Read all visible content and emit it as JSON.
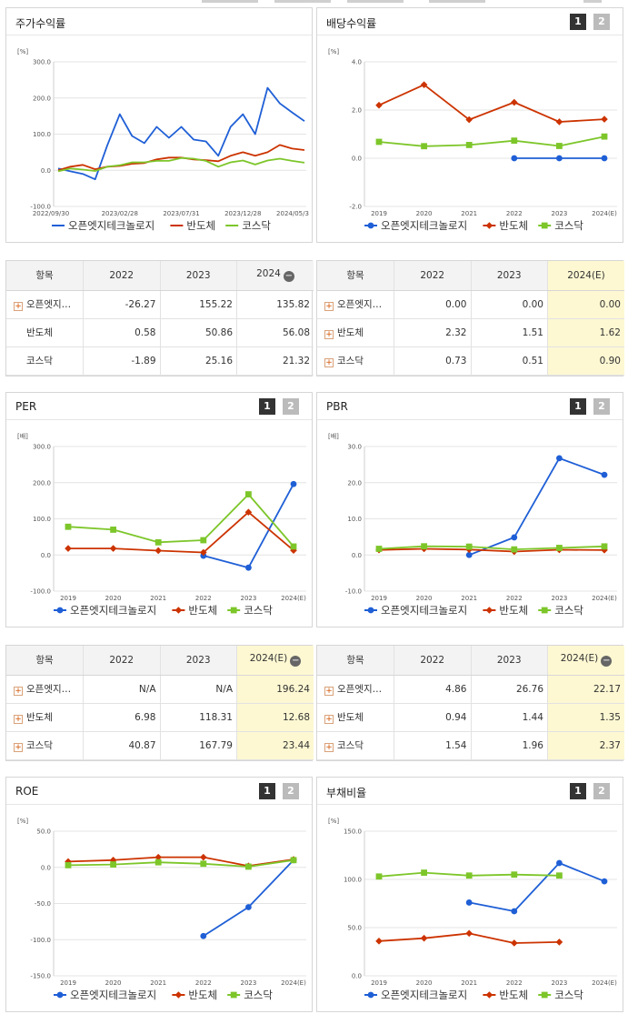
{
  "colors": {
    "blue": "#1f5fd6",
    "red": "#cc3300",
    "green": "#7dc62a",
    "grid": "#e4e4e4"
  },
  "panels": {
    "stock": {
      "title": "주가수익률",
      "unit": "[%]",
      "has_pager": false,
      "chart_data": {
        "type": "line",
        "ylim": [
          -100,
          300
        ],
        "yticks": [
          "300.0",
          "200.0",
          "100.0",
          "0.0",
          "-100.0"
        ],
        "x_labels": [
          "2022/09/30",
          "2023/02/28",
          "2023/07/31",
          "2023/12/28",
          "2024/05/3"
        ],
        "x_count": 21,
        "series": [
          {
            "name": "오픈엣지테크놀로지",
            "color": "blue",
            "marker": "none",
            "values": [
              5,
              -3,
              -10,
              -25,
              70,
              155,
              95,
              75,
              120,
              90,
              120,
              85,
              80,
              40,
              120,
              155,
              100,
              228,
              185,
              160,
              136
            ]
          },
          {
            "name": "반도체",
            "color": "red",
            "marker": "none",
            "values": [
              0,
              10,
              15,
              3,
              10,
              12,
              18,
              20,
              30,
              35,
              35,
              30,
              28,
              25,
              40,
              50,
              40,
              50,
              70,
              60,
              56
            ]
          },
          {
            "name": "코스닥",
            "color": "green",
            "marker": "none",
            "values": [
              -3,
              5,
              2,
              -2,
              10,
              14,
              22,
              22,
              26,
              26,
              34,
              32,
              26,
              10,
              22,
              27,
              16,
              27,
              32,
              26,
              21
            ]
          }
        ]
      },
      "table": {
        "headers": [
          "항목",
          "2022",
          "2023",
          "2024"
        ],
        "header_minus": true,
        "highlight_last": false,
        "rows": [
          {
            "name": "오픈엣지…",
            "plus": true,
            "values": [
              "-26.27",
              "155.22",
              "135.82"
            ]
          },
          {
            "name": "반도체",
            "plus": false,
            "values": [
              "0.58",
              "50.86",
              "56.08"
            ]
          },
          {
            "name": "코스닥",
            "plus": false,
            "values": [
              "-1.89",
              "25.16",
              "21.32"
            ]
          }
        ]
      }
    },
    "dividend": {
      "title": "배당수익률",
      "unit": "[%]",
      "has_pager": true,
      "pager": [
        "1",
        "2"
      ],
      "chart_data": {
        "type": "line",
        "ylim": [
          -2,
          4
        ],
        "yticks": [
          "4.0",
          "2.0",
          "0.0",
          "-2.0"
        ],
        "categories": [
          "2019",
          "2020",
          "2021",
          "2022",
          "2023",
          "2024(E)"
        ],
        "series": [
          {
            "name": "오픈엣지테크놀로지",
            "color": "blue",
            "marker": "circle",
            "values": [
              null,
              null,
              null,
              0.0,
              0.0,
              0.0
            ]
          },
          {
            "name": "반도체",
            "color": "red",
            "marker": "diamond",
            "values": [
              2.2,
              3.05,
              1.6,
              2.32,
              1.51,
              1.62
            ]
          },
          {
            "name": "코스닥",
            "color": "green",
            "marker": "square",
            "values": [
              0.68,
              0.5,
              0.55,
              0.73,
              0.51,
              0.9
            ]
          }
        ]
      },
      "table": {
        "headers": [
          "항목",
          "2022",
          "2023",
          "2024(E)"
        ],
        "header_minus": false,
        "highlight_last": true,
        "rows": [
          {
            "name": "오픈엣지…",
            "plus": true,
            "values": [
              "0.00",
              "0.00",
              "0.00"
            ]
          },
          {
            "name": "반도체",
            "plus": true,
            "values": [
              "2.32",
              "1.51",
              "1.62"
            ]
          },
          {
            "name": "코스닥",
            "plus": true,
            "values": [
              "0.73",
              "0.51",
              "0.90"
            ]
          }
        ]
      }
    },
    "per": {
      "title": "PER",
      "unit": "[배]",
      "has_pager": true,
      "pager": [
        "1",
        "2"
      ],
      "chart_data": {
        "type": "line",
        "ylim": [
          -100,
          300
        ],
        "yticks": [
          "300.0",
          "200.0",
          "100.0",
          "0.0",
          "-100.0"
        ],
        "categories": [
          "2019",
          "2020",
          "2021",
          "2022",
          "2023",
          "2024(E)"
        ],
        "series": [
          {
            "name": "오픈엣지테크놀로지",
            "color": "blue",
            "marker": "circle",
            "values": [
              null,
              null,
              null,
              -2,
              -35,
              196.24
            ]
          },
          {
            "name": "반도체",
            "color": "red",
            "marker": "diamond",
            "values": [
              18,
              18,
              12,
              6.98,
              118.31,
              12.68
            ]
          },
          {
            "name": "코스닥",
            "color": "green",
            "marker": "square",
            "values": [
              78,
              70,
              35,
              40.87,
              167.79,
              23.44
            ]
          }
        ]
      },
      "table": {
        "headers": [
          "항목",
          "2022",
          "2023",
          "2024(E)"
        ],
        "header_minus": true,
        "highlight_last": true,
        "rows": [
          {
            "name": "오픈엣지…",
            "plus": true,
            "values": [
              "N/A",
              "N/A",
              "196.24"
            ]
          },
          {
            "name": "반도체",
            "plus": true,
            "values": [
              "6.98",
              "118.31",
              "12.68"
            ]
          },
          {
            "name": "코스닥",
            "plus": true,
            "values": [
              "40.87",
              "167.79",
              "23.44"
            ]
          }
        ]
      }
    },
    "pbr": {
      "title": "PBR",
      "unit": "[배]",
      "has_pager": true,
      "pager": [
        "1",
        "2"
      ],
      "chart_data": {
        "type": "line",
        "ylim": [
          -10,
          30
        ],
        "yticks": [
          "30.0",
          "20.0",
          "10.0",
          "0.0",
          "-10.0"
        ],
        "categories": [
          "2019",
          "2020",
          "2021",
          "2022",
          "2023",
          "2024(E)"
        ],
        "series": [
          {
            "name": "오픈엣지테크놀로지",
            "color": "blue",
            "marker": "circle",
            "values": [
              null,
              null,
              0.0,
              4.86,
              26.76,
              22.17
            ]
          },
          {
            "name": "반도체",
            "color": "red",
            "marker": "diamond",
            "values": [
              1.4,
              1.7,
              1.5,
              0.94,
              1.44,
              1.35
            ]
          },
          {
            "name": "코스닥",
            "color": "green",
            "marker": "square",
            "values": [
              1.7,
              2.4,
              2.3,
              1.54,
              1.96,
              2.37
            ]
          }
        ]
      },
      "table": {
        "headers": [
          "항목",
          "2022",
          "2023",
          "2024(E)"
        ],
        "header_minus": true,
        "highlight_last": true,
        "rows": [
          {
            "name": "오픈엣지…",
            "plus": true,
            "values": [
              "4.86",
              "26.76",
              "22.17"
            ]
          },
          {
            "name": "반도체",
            "plus": true,
            "values": [
              "0.94",
              "1.44",
              "1.35"
            ]
          },
          {
            "name": "코스닥",
            "plus": true,
            "values": [
              "1.54",
              "1.96",
              "2.37"
            ]
          }
        ]
      }
    },
    "roe": {
      "title": "ROE",
      "unit": "[%]",
      "has_pager": true,
      "pager": [
        "1",
        "2"
      ],
      "chart_data": {
        "type": "line",
        "ylim": [
          -150,
          50
        ],
        "yticks": [
          "50.0",
          "0.0",
          "-50.0",
          "-100.0",
          "-150.0"
        ],
        "categories": [
          "2019",
          "2020",
          "2021",
          "2022",
          "2023",
          "2024(E)"
        ],
        "series": [
          {
            "name": "오픈엣지테크놀로지",
            "color": "blue",
            "marker": "circle",
            "values": [
              null,
              null,
              null,
              -95,
              -55,
              10
            ]
          },
          {
            "name": "반도체",
            "color": "red",
            "marker": "diamond",
            "values": [
              8,
              10,
              14,
              14,
              2,
              11
            ]
          },
          {
            "name": "코스닥",
            "color": "green",
            "marker": "square",
            "values": [
              3,
              4,
              7,
              5,
              1,
              10
            ]
          }
        ]
      }
    },
    "debt": {
      "title": "부채비율",
      "unit": "[%]",
      "has_pager": true,
      "pager": [
        "1",
        "2"
      ],
      "chart_data": {
        "type": "line",
        "ylim": [
          0,
          150
        ],
        "yticks": [
          "150.0",
          "100.0",
          "50.0",
          "0.0"
        ],
        "categories": [
          "2019",
          "2020",
          "2021",
          "2022",
          "2023",
          "2024(E)"
        ],
        "series": [
          {
            "name": "오픈엣지테크놀로지",
            "color": "blue",
            "marker": "circle",
            "values": [
              null,
              null,
              76,
              67,
              117,
              98
            ]
          },
          {
            "name": "반도체",
            "color": "red",
            "marker": "diamond",
            "values": [
              36,
              39,
              44,
              34,
              35,
              null
            ]
          },
          {
            "name": "코스닥",
            "color": "green",
            "marker": "square",
            "values": [
              103,
              107,
              104,
              105,
              104,
              null
            ]
          }
        ]
      }
    }
  }
}
